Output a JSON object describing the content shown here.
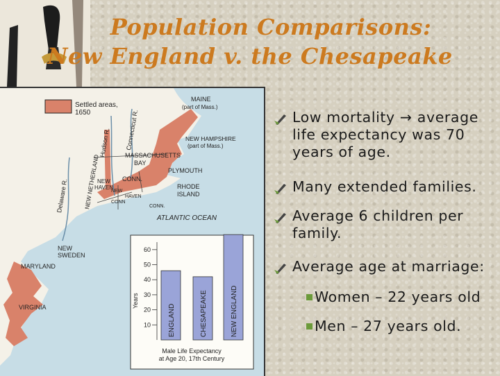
{
  "title": {
    "line1": "Population Comparisons:",
    "line2": "New England v. the Chesapeake"
  },
  "map": {
    "legend_label_1": "Settled areas,",
    "legend_label_2": "1650",
    "labels": {
      "maine": "MAINE",
      "maine_sub": "(part of Mass.)",
      "connecticut_r": "Connecticut R.",
      "hudson_r": "Hudson R.",
      "new_hampshire": "NEW HAMPSHIRE",
      "new_hampshire_sub": "(part of Mass.)",
      "massachusetts": "MASSACHUSETTS",
      "bay": "BAY",
      "new_netherland": "NEW NETHERLAND",
      "delaware_r": "Delaware R.",
      "plymouth": "PLYMOUTH",
      "new_haven": "NEW",
      "new_haven_2": "HAVEN",
      "conn": "CONN.",
      "rhode_island": "RHODE",
      "rhode_island_2": "ISLAND",
      "new_haven_conn": "NEW",
      "new_haven_conn_2": "CONN",
      "new_haven_conn_3": "HAVEN",
      "conn_2": "CONN.",
      "atlantic": "ATLANTIC OCEAN",
      "new_sweden": "NEW",
      "new_sweden_2": "SWEDEN",
      "maryland": "MARYLAND",
      "virginia": "VIRGINIA"
    },
    "colors": {
      "settled": "#d9826a",
      "water": "#c7dde6",
      "land": "#f4f1e8"
    }
  },
  "chart_data": {
    "type": "bar",
    "categories": [
      "ENGLAND",
      "CHESAPEAKE",
      "NEW ENGLAND"
    ],
    "values": [
      46,
      42,
      70
    ],
    "ylabel": "Years",
    "ylim": [
      0,
      65
    ],
    "yticks": [
      10,
      20,
      30,
      40,
      50,
      60
    ],
    "caption_1": "Male Life Expectancy",
    "caption_2": "at Age 20, 17th Century",
    "bar_color": "#9aa4d8"
  },
  "bullets": [
    {
      "text": "Low mortality → average life expectancy was 70 years of age."
    },
    {
      "text": "Many extended families."
    },
    {
      "text": "Average 6 children per family."
    },
    {
      "text": "Average age at marriage:"
    }
  ],
  "sub_bullets": [
    {
      "text": "Women – 22 years old"
    },
    {
      "text": "Men – 27 years old."
    }
  ]
}
